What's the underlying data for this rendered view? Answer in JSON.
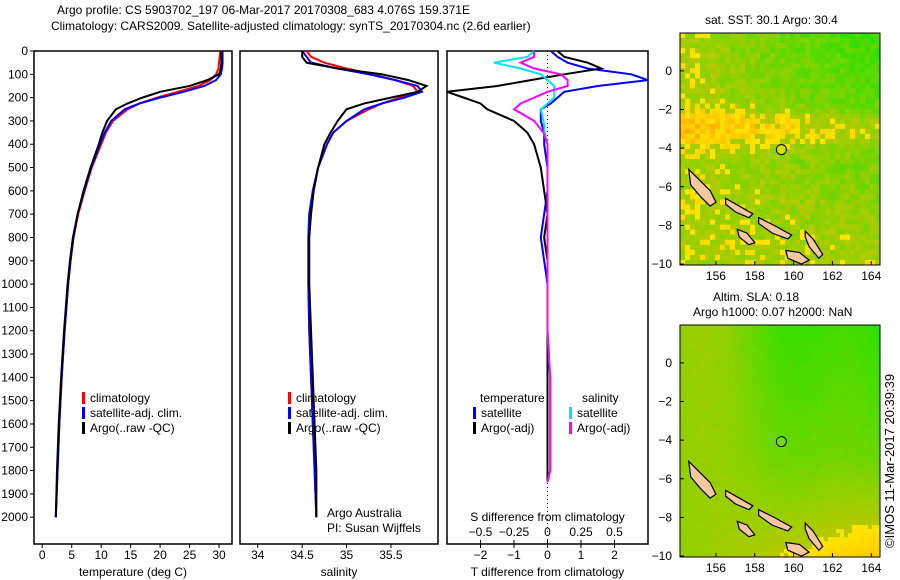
{
  "title_line1": "Argo profile: CS 5903702_197 06-Mar-2017 20170308_683 4.076S 159.371E",
  "title_line2": "Climatology: CARS2009. Satellite-adjusted climatology: synTS_20170304.nc (2.6d earlier)",
  "colors": {
    "climatology": "#ff0000",
    "satellite": "#0000ff",
    "argo": "#000000",
    "sal_satellite": "#00e5ee",
    "sal_argo": "#ff00ff"
  },
  "chart_data": [
    {
      "type": "line",
      "id": "temp",
      "xlabel": "temperature (deg C)",
      "ylabel": "depth",
      "xlim": [
        -1.4,
        32.2
      ],
      "ylim": [
        0,
        2115
      ],
      "xticks": [
        0,
        5,
        10,
        15,
        20,
        25,
        30
      ],
      "yticks": [
        0,
        100,
        200,
        300,
        400,
        500,
        600,
        700,
        800,
        900,
        1000,
        1100,
        1200,
        1300,
        1400,
        1500,
        1600,
        1700,
        1800,
        1900,
        2000
      ],
      "depth": [
        0,
        25,
        50,
        75,
        100,
        125,
        150,
        175,
        200,
        225,
        250,
        300,
        350,
        400,
        500,
        600,
        700,
        800,
        900,
        1000,
        1200,
        1400,
        1600,
        1800,
        2000
      ],
      "series": [
        {
          "name": "climatology",
          "color": "#ff0000",
          "values": [
            30.2,
            30.1,
            30,
            29.9,
            29.5,
            28.5,
            26.5,
            23,
            19.5,
            16.5,
            14.5,
            12,
            10.8,
            10,
            8.4,
            7.2,
            6.1,
            5.3,
            4.8,
            4.4,
            3.8,
            3.3,
            2.9,
            2.6,
            2.3
          ]
        },
        {
          "name": "satellite-adj. clim.",
          "color": "#0000ff",
          "values": [
            30.6,
            30.6,
            30.6,
            30.5,
            30.3,
            29.5,
            27.5,
            24,
            20,
            16.5,
            14,
            11.7,
            10.6,
            9.8,
            8.3,
            7.1,
            6,
            5.3,
            4.8,
            4.4,
            3.8,
            3.3,
            2.9,
            2.6,
            2.3
          ]
        },
        {
          "name": "Argo(..raw -QC)",
          "color": "#000000",
          "values": [
            30.4,
            30.4,
            30.4,
            30.3,
            30,
            28,
            25,
            20,
            17,
            14.5,
            12.5,
            11,
            10.2,
            9.6,
            8.2,
            7,
            6,
            5.2,
            4.7,
            4.3,
            3.7,
            3.2,
            2.8,
            2.5,
            2.3
          ]
        }
      ]
    },
    {
      "type": "line",
      "id": "sal",
      "xlabel": "salinity",
      "xlim": [
        33.8,
        36.03
      ],
      "ylim": [
        0,
        2115
      ],
      "xticks": [
        34,
        34.5,
        35,
        35.5
      ],
      "depth": [
        0,
        25,
        50,
        75,
        100,
        125,
        150,
        175,
        200,
        225,
        250,
        300,
        350,
        400,
        500,
        600,
        700,
        800,
        900,
        1000,
        1200,
        1400,
        1600,
        1800,
        2000
      ],
      "series": [
        {
          "name": "climatology",
          "color": "#ff0000",
          "values": [
            34.55,
            34.6,
            34.75,
            35.0,
            35.3,
            35.55,
            35.75,
            35.8,
            35.6,
            35.4,
            35.25,
            35.0,
            34.85,
            34.78,
            34.68,
            34.62,
            34.58,
            34.57,
            34.57,
            34.57,
            34.58,
            34.6,
            34.62,
            34.64,
            34.66
          ]
        },
        {
          "name": "satellite-adj. clim.",
          "color": "#0000ff",
          "values": [
            34.5,
            34.55,
            34.6,
            34.9,
            35.25,
            35.55,
            35.8,
            35.85,
            35.65,
            35.4,
            35.2,
            35.0,
            34.85,
            34.78,
            34.68,
            34.62,
            34.58,
            34.57,
            34.57,
            34.57,
            34.58,
            34.6,
            34.62,
            34.64,
            34.66
          ]
        },
        {
          "name": "Argo(..raw -QC)",
          "color": "#000000",
          "values": [
            34.5,
            34.5,
            34.55,
            34.9,
            35.4,
            35.7,
            35.9,
            35.8,
            35.5,
            35.2,
            35.0,
            34.9,
            34.82,
            34.75,
            34.68,
            34.63,
            34.6,
            34.58,
            34.58,
            34.58,
            34.6,
            34.62,
            34.64,
            34.66,
            34.66
          ]
        }
      ],
      "annotation1": "Argo Australia",
      "annotation2": "PI: Susan Wijffels"
    },
    {
      "type": "line",
      "id": "diff",
      "xlabel": "T difference from climatology",
      "x2label": "S difference from climatology",
      "xlim": [
        -3,
        3
      ],
      "x2lim": [
        -0.75,
        0.75
      ],
      "ylim": [
        0,
        2115
      ],
      "xticks": [
        -2,
        -1,
        0,
        1,
        2
      ],
      "x2ticks": [
        -0.5,
        -0.25,
        0,
        0.25,
        0.5
      ],
      "depth": [
        0,
        25,
        50,
        75,
        100,
        125,
        150,
        175,
        200,
        225,
        250,
        300,
        350,
        400,
        500,
        600,
        700,
        800,
        900,
        1000,
        1200,
        1400,
        1600,
        1800,
        1850
      ],
      "legend_temperature": "temperature",
      "legend_salinity": "salinity",
      "series": [
        {
          "name": "satellite",
          "quantity": "temperature",
          "color": "#0000ff",
          "values": [
            0.1,
            0.3,
            0.6,
            1.2,
            2.5,
            3,
            1.5,
            0.5,
            0.3,
            0.1,
            -0.2,
            -0.2,
            -0.1,
            -0.1,
            0,
            0,
            -0.1,
            -0.2,
            -0.1,
            0,
            0,
            0,
            0,
            0,
            0
          ]
        },
        {
          "name": "Argo(-adj)",
          "quantity": "temperature",
          "color": "#000000",
          "values": [
            0.3,
            0.5,
            1.2,
            1.6,
            0.5,
            -0.5,
            -1.5,
            -3,
            -2.5,
            -2,
            -1.8,
            -1,
            -0.6,
            -0.4,
            -0.2,
            -0.1,
            0,
            -0.1,
            0,
            0,
            0,
            0,
            0,
            0,
            0
          ]
        },
        {
          "name": "satellite",
          "quantity": "salinity",
          "color": "#00e5ee",
          "values": [
            -0.1,
            -0.15,
            -0.4,
            -0.2,
            -0.05,
            0,
            0.05,
            0.05,
            0.05,
            0,
            -0.05,
            -0.03,
            -0.02,
            0,
            0,
            0,
            0,
            0,
            0,
            0,
            0,
            0.02,
            0.02,
            0.02,
            0
          ]
        },
        {
          "name": "Argo(-adj)",
          "quantity": "salinity",
          "color": "#ff00ff",
          "values": [
            -0.1,
            -0.1,
            -0.2,
            -0.1,
            0.1,
            0.15,
            0.15,
            0,
            -0.1,
            -0.2,
            -0.25,
            -0.1,
            -0.03,
            0,
            0,
            0,
            0,
            0,
            0,
            0,
            0,
            0.02,
            0.02,
            0.02,
            0
          ]
        }
      ]
    },
    {
      "type": "heatmap",
      "id": "sst",
      "title": "sat. SST: 30.1 Argo: 30.4",
      "xlim": [
        154.15,
        164.45
      ],
      "ylim": [
        -10.05,
        1.96
      ],
      "xticks": [
        156,
        158,
        160,
        162,
        164
      ],
      "yticks": [
        0,
        -2,
        -4,
        -6,
        -8,
        -10
      ],
      "float_position": [
        159.371,
        -4.076
      ]
    },
    {
      "type": "heatmap",
      "id": "sla",
      "title": "Altim. SLA: 0.18",
      "subtitle": "Argo h1000: 0.07 h2000: NaN",
      "xlim": [
        154.15,
        164.45
      ],
      "ylim": [
        -10.05,
        1.96
      ],
      "xticks": [
        156,
        158,
        160,
        162,
        164
      ],
      "yticks": [
        0,
        -2,
        -4,
        -6,
        -8,
        -10
      ],
      "float_position": [
        159.371,
        -4.076
      ]
    }
  ],
  "islands": [
    [
      [
        154.6,
        -5.1
      ],
      [
        155.1,
        -5.6
      ],
      [
        155.7,
        -6.2
      ],
      [
        156.0,
        -6.8
      ],
      [
        155.7,
        -7.0
      ],
      [
        155.2,
        -6.5
      ],
      [
        154.7,
        -5.9
      ]
    ],
    [
      [
        156.5,
        -6.6
      ],
      [
        157.2,
        -7.0
      ],
      [
        157.9,
        -7.4
      ],
      [
        157.7,
        -7.6
      ],
      [
        157.0,
        -7.3
      ],
      [
        156.5,
        -6.9
      ]
    ],
    [
      [
        158.2,
        -7.6
      ],
      [
        159.0,
        -8.0
      ],
      [
        159.9,
        -8.5
      ],
      [
        159.7,
        -8.7
      ],
      [
        158.9,
        -8.4
      ],
      [
        158.2,
        -7.9
      ]
    ],
    [
      [
        157.1,
        -8.2
      ],
      [
        157.6,
        -8.4
      ],
      [
        158.0,
        -8.9
      ],
      [
        157.7,
        -9.0
      ],
      [
        157.2,
        -8.6
      ]
    ],
    [
      [
        159.6,
        -9.3
      ],
      [
        160.3,
        -9.4
      ],
      [
        160.8,
        -9.8
      ],
      [
        160.4,
        -10.0
      ],
      [
        159.7,
        -9.7
      ]
    ],
    [
      [
        160.6,
        -8.3
      ],
      [
        161.0,
        -8.7
      ],
      [
        161.5,
        -9.5
      ],
      [
        161.3,
        -9.7
      ],
      [
        160.8,
        -9.1
      ],
      [
        160.6,
        -8.6
      ]
    ]
  ],
  "timestamp": "©IMOS 11-Mar-2017 20:39:39"
}
